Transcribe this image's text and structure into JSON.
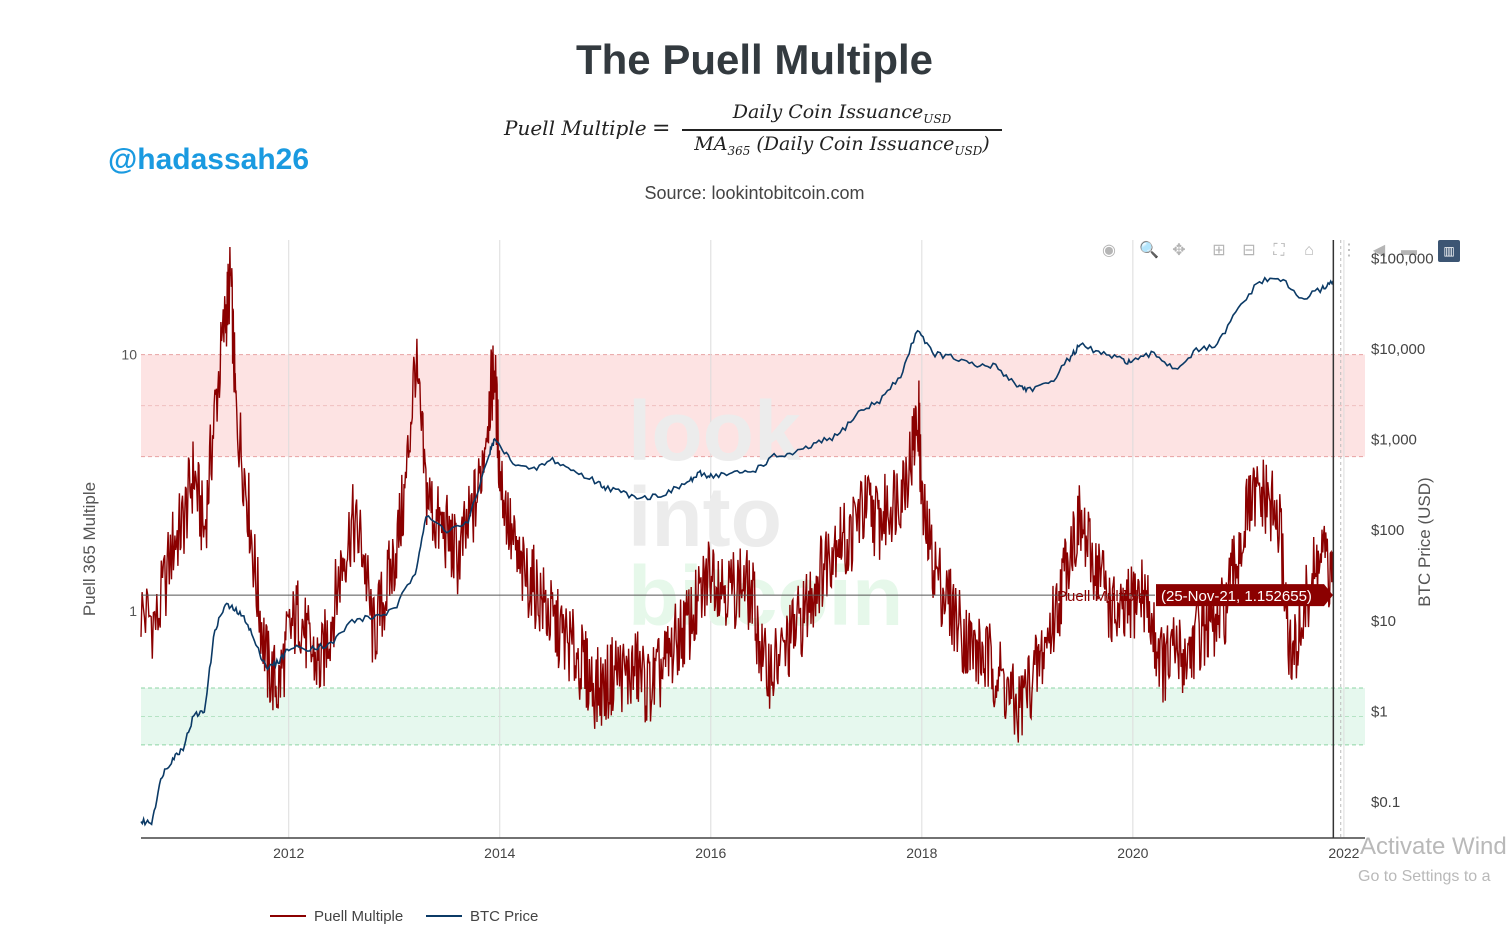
{
  "title": "The Puell Multiple",
  "formula": {
    "lhs": "Puell Multiple",
    "equals": "=",
    "numerator": "Daily Coin Issuance",
    "numerator_sub": "USD",
    "denominator_prefix": "MA",
    "denominator_prefix_sub": "365",
    "denominator_body": " (Daily Coin Issuance",
    "denominator_sub": "USD",
    "denominator_close": ")"
  },
  "handle": "@hadassah26",
  "source": "Source: lookintobitcoin.com",
  "toolbar_icons": [
    "camera-icon",
    "zoom-icon",
    "pan-icon",
    "zoom-in-icon",
    "zoom-out-icon",
    "autoscale-icon",
    "home-icon",
    "spike-lines-icon",
    "hover-closest-icon",
    "hover-compare-icon",
    "plotly-logo-icon"
  ],
  "watermark": {
    "line1": "look",
    "line2": "into",
    "line3": "bitcoin"
  },
  "os_watermark": {
    "line1": "Activate Wind",
    "line2": "Go to Settings to a"
  },
  "tooltip": {
    "series": "Puell Multiple",
    "value": "(25-Nov-21, 1.152655)"
  },
  "colors": {
    "puell": "#8b0000",
    "btc": "#0b3a66",
    "red_zone": "#fde3e3",
    "green_zone": "#e6f8ee",
    "tooltip_bg": "#8b0000"
  },
  "chart_data": {
    "type": "line",
    "x_ticks": [
      "2012",
      "2014",
      "2016",
      "2018",
      "2020",
      "2022"
    ],
    "y_left": {
      "label": "Puell 365 Multiple",
      "scale": "log",
      "ticks": [
        "1",
        "10"
      ],
      "range": [
        0.13,
        28
      ]
    },
    "y_right": {
      "label": "BTC Price (USD)",
      "scale": "log",
      "ticks": [
        "$0.1",
        "$1",
        "$10",
        "$100",
        "$1,000",
        "$10,000",
        "$100,000"
      ],
      "range": [
        0.04,
        160000
      ]
    },
    "zones": [
      {
        "name": "top",
        "from": 4,
        "to": 10,
        "color": "#fde3e3"
      },
      {
        "name": "bottom",
        "from": 0.3,
        "to": 0.5,
        "color": "#e6f8ee"
      }
    ],
    "series": [
      {
        "name": "Puell Multiple",
        "axis": "left",
        "x": [
          2010.6,
          2010.75,
          2010.9,
          2011.0,
          2011.1,
          2011.2,
          2011.3,
          2011.4,
          2011.45,
          2011.5,
          2011.6,
          2011.7,
          2011.8,
          2011.9,
          2012.0,
          2012.1,
          2012.2,
          2012.3,
          2012.4,
          2012.5,
          2012.6,
          2012.7,
          2012.8,
          2012.9,
          2013.0,
          2013.1,
          2013.2,
          2013.3,
          2013.4,
          2013.5,
          2013.6,
          2013.7,
          2013.8,
          2013.9,
          2013.95,
          2014.0,
          2014.1,
          2014.2,
          2014.3,
          2014.4,
          2014.5,
          2014.6,
          2014.7,
          2014.8,
          2014.9,
          2015.0,
          2015.1,
          2015.2,
          2015.3,
          2015.4,
          2015.5,
          2015.6,
          2015.7,
          2015.8,
          2015.9,
          2016.0,
          2016.1,
          2016.2,
          2016.3,
          2016.4,
          2016.5,
          2016.6,
          2016.7,
          2016.8,
          2016.9,
          2017.0,
          2017.1,
          2017.2,
          2017.3,
          2017.4,
          2017.5,
          2017.6,
          2017.7,
          2017.8,
          2017.9,
          2017.97,
          2018.0,
          2018.1,
          2018.2,
          2018.3,
          2018.4,
          2018.5,
          2018.6,
          2018.7,
          2018.8,
          2018.9,
          2019.0,
          2019.1,
          2019.2,
          2019.3,
          2019.4,
          2019.5,
          2019.6,
          2019.7,
          2019.8,
          2019.9,
          2020.0,
          2020.1,
          2020.2,
          2020.3,
          2020.4,
          2020.5,
          2020.6,
          2020.7,
          2020.8,
          2020.9,
          2021.0,
          2021.1,
          2021.2,
          2021.3,
          2021.4,
          2021.5,
          2021.6,
          2021.7,
          2021.8,
          2021.9
        ],
        "y": [
          1.0,
          0.9,
          1.8,
          2.2,
          3.5,
          2.0,
          6.0,
          14.0,
          20.0,
          6.0,
          3.0,
          1.2,
          0.6,
          0.5,
          0.8,
          1.0,
          0.7,
          0.6,
          0.9,
          1.5,
          2.2,
          1.8,
          0.8,
          1.1,
          1.6,
          2.8,
          9.5,
          3.0,
          2.2,
          2.0,
          1.6,
          2.1,
          3.0,
          6.5,
          8.8,
          3.5,
          2.0,
          1.4,
          1.3,
          1.1,
          0.9,
          0.8,
          0.7,
          0.6,
          0.5,
          0.5,
          0.6,
          0.55,
          0.6,
          0.5,
          0.55,
          0.65,
          0.8,
          0.9,
          1.1,
          1.5,
          1.3,
          1.2,
          1.3,
          1.1,
          0.6,
          0.6,
          0.7,
          0.85,
          1.0,
          1.3,
          1.6,
          2.0,
          1.8,
          2.4,
          2.5,
          2.2,
          2.6,
          3.0,
          4.0,
          6.0,
          2.5,
          1.6,
          1.2,
          1.0,
          0.8,
          0.7,
          0.65,
          0.6,
          0.5,
          0.4,
          0.5,
          0.6,
          0.8,
          1.1,
          1.8,
          2.2,
          1.6,
          1.4,
          1.0,
          0.9,
          1.1,
          1.2,
          0.8,
          0.6,
          0.7,
          0.65,
          0.8,
          0.9,
          0.85,
          1.1,
          1.7,
          2.5,
          2.8,
          2.6,
          2.0,
          0.6,
          0.9,
          1.3,
          1.7,
          1.15
        ]
      },
      {
        "name": "BTC Price",
        "axis": "right",
        "x": [
          2010.6,
          2010.7,
          2010.8,
          2010.9,
          2011.0,
          2011.1,
          2011.2,
          2011.3,
          2011.4,
          2011.5,
          2011.6,
          2011.7,
          2011.8,
          2011.9,
          2012.0,
          2012.2,
          2012.4,
          2012.6,
          2012.8,
          2013.0,
          2013.2,
          2013.3,
          2013.5,
          2013.7,
          2013.9,
          2013.95,
          2014.1,
          2014.3,
          2014.5,
          2014.7,
          2014.9,
          2015.0,
          2015.2,
          2015.4,
          2015.6,
          2015.8,
          2015.9,
          2016.0,
          2016.2,
          2016.4,
          2016.6,
          2016.8,
          2017.0,
          2017.2,
          2017.4,
          2017.6,
          2017.8,
          2017.96,
          2018.1,
          2018.3,
          2018.5,
          2018.7,
          2018.9,
          2019.0,
          2019.2,
          2019.4,
          2019.5,
          2019.7,
          2019.9,
          2020.0,
          2020.2,
          2020.4,
          2020.6,
          2020.8,
          2021.0,
          2021.2,
          2021.4,
          2021.6,
          2021.8,
          2021.9
        ],
        "y": [
          0.06,
          0.06,
          0.2,
          0.3,
          0.4,
          0.9,
          1.0,
          8.0,
          15.0,
          13.0,
          10.0,
          5.0,
          3.0,
          3.5,
          5.0,
          5.0,
          5.5,
          10.0,
          11.0,
          13.0,
          35.0,
          140.0,
          100.0,
          120.0,
          700.0,
          1000.0,
          600.0,
          450.0,
          600.0,
          450.0,
          350.0,
          300.0,
          250.0,
          230.0,
          260.0,
          350.0,
          420.0,
          400.0,
          420.0,
          450.0,
          650.0,
          700.0,
          900.0,
          1100.0,
          2000.0,
          2700.0,
          5000.0,
          17000.0,
          9000.0,
          8000.0,
          6500.0,
          6500.0,
          4000.0,
          3600.0,
          4000.0,
          8000.0,
          11000.0,
          9000.0,
          7500.0,
          7200.0,
          9000.0,
          6000.0,
          9500.0,
          11000.0,
          28000.0,
          56000.0,
          60000.0,
          35000.0,
          47000.0,
          57000.0
        ]
      }
    ],
    "legend": {
      "position": "bottom-left",
      "entries": [
        "Puell Multiple",
        "BTC Price"
      ]
    },
    "grid": true
  }
}
